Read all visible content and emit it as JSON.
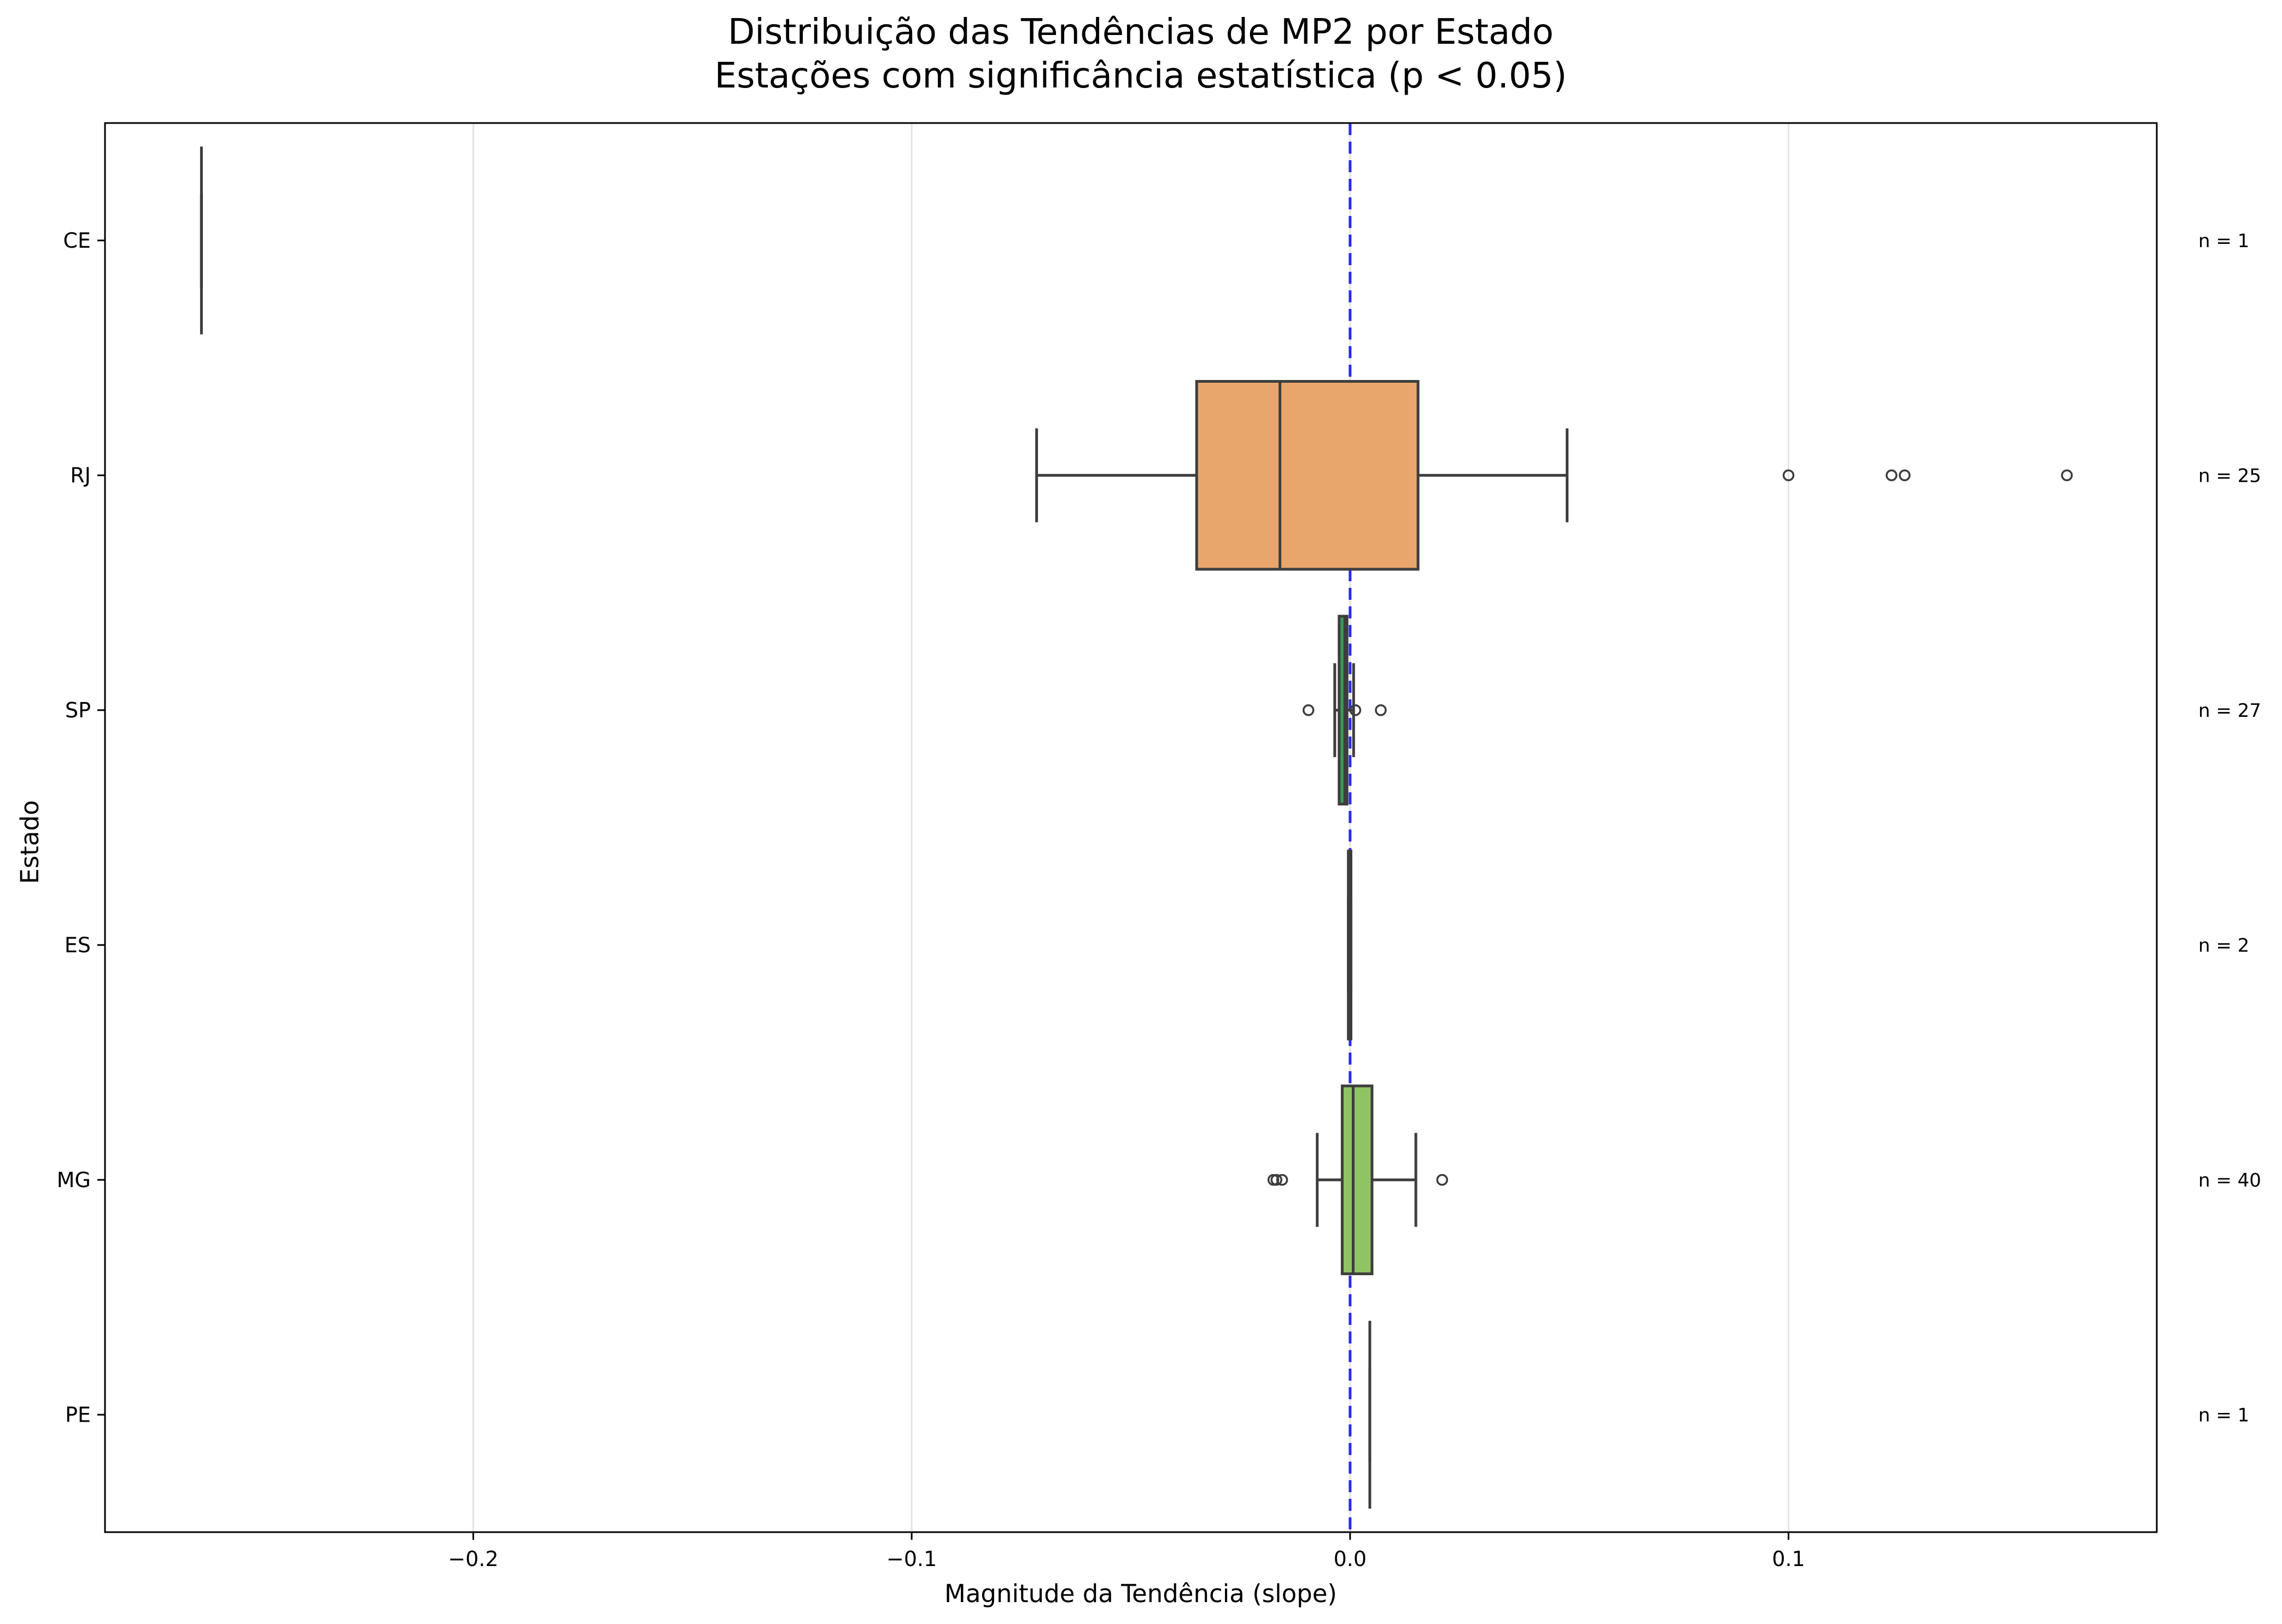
{
  "chart_data": {
    "type": "boxplot",
    "orientation": "horizontal",
    "title_line1": "Distribuição das Tendências de MP2 por Estado",
    "title_line2": "Estações com significância estatística (p < 0.05)",
    "xlabel": "Magnitude da Tendência (slope)",
    "ylabel": "Estado",
    "xlim": [
      -0.284,
      0.184
    ],
    "xticks": [
      {
        "value": -0.2,
        "label": "−0.2"
      },
      {
        "value": -0.1,
        "label": "−0.1"
      },
      {
        "value": 0.0,
        "label": "0.0"
      },
      {
        "value": 0.1,
        "label": "0.1"
      }
    ],
    "grid": "vertical",
    "reference_line": {
      "value": 0.0,
      "color": "#2a2aee",
      "style": "dashed"
    },
    "categories": [
      {
        "label": "CE",
        "n_label": "n = 1",
        "color": "#4f8fcf",
        "min": -0.262,
        "q1": -0.262,
        "median": -0.262,
        "q3": -0.262,
        "max": -0.262,
        "outliers": []
      },
      {
        "label": "RJ",
        "n_label": "n = 25",
        "color": "#e8a66d",
        "min": -0.0715,
        "q1": -0.035,
        "median": -0.016,
        "q3": 0.0155,
        "max": 0.0495,
        "outliers": [
          0.1,
          0.1235,
          0.1265,
          0.1635
        ]
      },
      {
        "label": "SP",
        "n_label": "n = 27",
        "color": "#3b9a58",
        "min": -0.0035,
        "q1": -0.0025,
        "median": -0.0012,
        "q3": -0.0007,
        "max": 0.0008,
        "outliers": [
          -0.0095,
          0.0012,
          0.007
        ]
      },
      {
        "label": "ES",
        "n_label": "n = 2",
        "color": "#c75050",
        "min": -0.0004,
        "q1": -0.0004,
        "median": -0.0001,
        "q3": 0.0002,
        "max": 0.0002,
        "outliers": []
      },
      {
        "label": "MG",
        "n_label": "n = 40",
        "color": "#8fc465",
        "min": -0.0075,
        "q1": -0.0018,
        "median": 0.0007,
        "q3": 0.005,
        "max": 0.015,
        "outliers": [
          -0.0175,
          -0.0168,
          -0.0155,
          0.021
        ]
      },
      {
        "label": "PE",
        "n_label": "n = 1",
        "color": "#8c6bb1",
        "min": 0.0045,
        "q1": 0.0045,
        "median": 0.0045,
        "q3": 0.0045,
        "max": 0.0045,
        "outliers": []
      }
    ]
  }
}
